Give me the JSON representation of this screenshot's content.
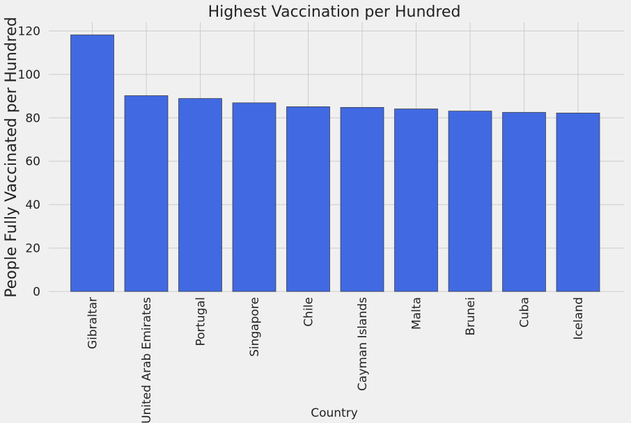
{
  "chart_data": {
    "type": "bar",
    "title": "Highest Vaccination per Hundred",
    "xlabel": "Country",
    "ylabel": "People Fully Vaccinated per Hundred",
    "categories": [
      "Gibraltar",
      "United Arab Emirates",
      "Portugal",
      "Singapore",
      "Chile",
      "Cayman Islands",
      "Malta",
      "Brunei",
      "Cuba",
      "Iceland"
    ],
    "values": [
      118.2,
      90.2,
      88.9,
      86.9,
      85.1,
      84.8,
      84.1,
      83.1,
      82.5,
      82.2
    ],
    "ylim": [
      0,
      124
    ],
    "yticks": [
      0,
      20,
      40,
      60,
      80,
      100,
      120
    ],
    "grid": true,
    "bar_color": "#4169e1",
    "edge_color": "#333333",
    "background": "#f0f0f0"
  }
}
